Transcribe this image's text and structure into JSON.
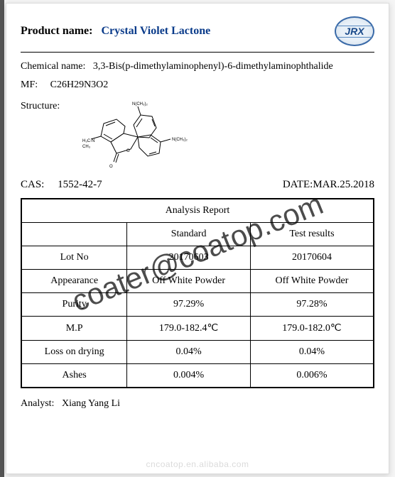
{
  "header": {
    "product_label": "Product name:",
    "product_value": "Crystal Violet Lactone",
    "logo_text": "JRX"
  },
  "chemical_name": {
    "label": "Chemical name:",
    "value": "3,3-Bis(p-dimethylaminophenyl)-6-dimethylaminophthalide"
  },
  "mf": {
    "label": "MF:",
    "value": "C26H29N3O2"
  },
  "structure_label": "Structure:",
  "cas": {
    "label": "CAS:",
    "value": "1552-42-7"
  },
  "date": {
    "label": "DATE:",
    "value": "MAR.25.2018"
  },
  "table": {
    "title": "Analysis Report",
    "columns": [
      "",
      "Standard",
      "Test results"
    ],
    "rows": [
      [
        "Lot No",
        "20170603",
        "20170604"
      ],
      [
        "Appearance",
        "Off White Powder",
        "Off White Powder"
      ],
      [
        "Purity",
        "97.29%",
        "97.28%"
      ],
      [
        "M.P",
        "179.0-182.4℃",
        "179.0-182.0℃"
      ],
      [
        "Loss on drying",
        "0.04%",
        "0.04%"
      ],
      [
        "Ashes",
        "0.004%",
        "0.006%"
      ]
    ],
    "col_widths": [
      "30%",
      "35%",
      "35%"
    ]
  },
  "analyst": {
    "label": "Analyst:",
    "value": "Xiang Yang Li"
  },
  "watermark_text": "coater@coatop.com",
  "footer_mark": "cncoatop.en.alibaba.com",
  "colors": {
    "product_value": "#0a3b8a",
    "border": "#000000",
    "page_bg": "#ffffff",
    "body_bg": "#f5f5f5",
    "logo_border": "#3a6aa8",
    "logo_text": "#1a4a8a",
    "watermark": "rgba(0,0,0,0.7)",
    "footer": "rgba(0,0,0,0.15)"
  },
  "fontsize": {
    "product": 16,
    "body": 14,
    "table_title": 15,
    "watermark": 42,
    "footer": 12
  }
}
